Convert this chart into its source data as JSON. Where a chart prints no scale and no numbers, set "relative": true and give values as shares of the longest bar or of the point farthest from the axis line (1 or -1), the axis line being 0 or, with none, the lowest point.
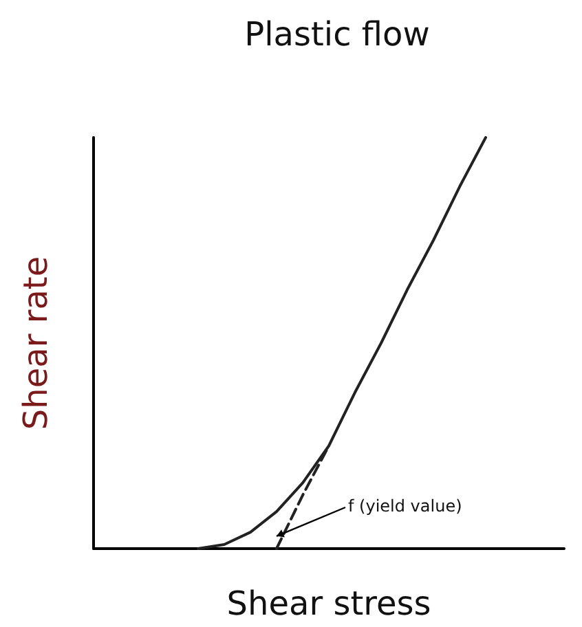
{
  "chart_data": {
    "type": "line",
    "title": "Plastic flow",
    "xlabel": "Shear stress",
    "ylabel": "Shear rate",
    "relative": true,
    "grid": false,
    "marker": "none",
    "categories": [
      null,
      null,
      null,
      null,
      null,
      null,
      null,
      null,
      null,
      null,
      null,
      null,
      null,
      null,
      null,
      null,
      null,
      null,
      null
    ],
    "series": [
      {
        "color": "#222222",
        "line_style": "solid",
        "values": [
          null,
          null,
          null,
          null,
          0,
          0.01,
          0.04,
          0.09,
          0.16,
          0.25,
          0.38,
          0.5,
          0.63,
          0.75,
          0.88,
          1,
          null,
          null,
          null
        ]
      },
      {
        "color": "#222222",
        "line_style": "dashed",
        "values": [
          null,
          null,
          null,
          null,
          null,
          null,
          null,
          0,
          0.13,
          0.25,
          null,
          null,
          null,
          null,
          null,
          null,
          null,
          null,
          null
        ]
      }
    ],
    "annotations": [
      "f (yield value)"
    ]
  }
}
